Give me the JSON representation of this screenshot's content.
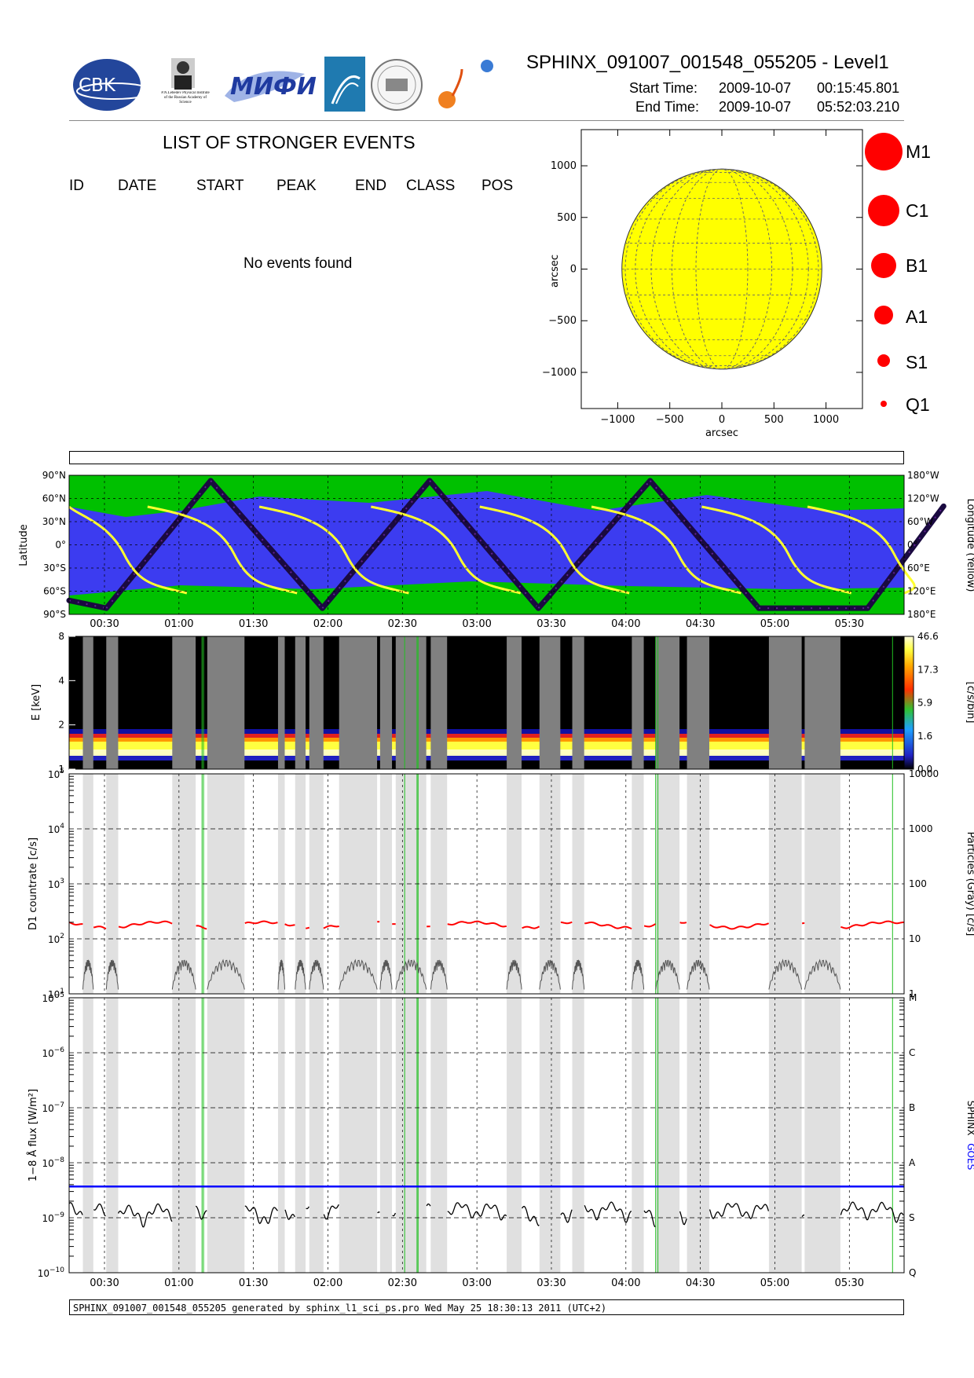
{
  "header": {
    "title": "SPHINX_091007_001548_055205 - Level1",
    "start_label": "Start Time:",
    "start_date": "2009-10-07",
    "start_time": "00:15:45.801",
    "end_label": "End Time:",
    "end_date": "2009-10-07",
    "end_time": "05:52:03.210",
    "logos": [
      "CBK",
      "P.N.Lebedev Physical Institute of the Russian Academy of Science",
      "МИФИ",
      "arc-logo",
      "seal-logo",
      "sun-logo"
    ]
  },
  "events": {
    "title": "LIST OF STRONGER EVENTS",
    "columns": [
      "ID",
      "DATE",
      "START",
      "PEAK",
      "END",
      "CLASS",
      "POS"
    ],
    "message": "No events found"
  },
  "classes": [
    "M1",
    "C1",
    "B1",
    "A1",
    "S1",
    "Q1"
  ],
  "colors": {
    "sun": "#ffff00",
    "marker": "#ff0000",
    "ocean": "#3c3cf0",
    "land": "#00c000",
    "orbit": "#ffff30",
    "goes": "#0000ff",
    "gray": "#e0e0e0"
  },
  "footer": "SPHINX_091007_001548_055205 generated by sphinx_l1_sci_ps.pro Wed May 25 18:30:13 2011 (UTC+2)",
  "chart_data": [
    {
      "type": "scatter",
      "name": "sun-disk",
      "xlabel": "arcsec",
      "ylabel": "arcsec",
      "xlim": [
        -1350,
        1350
      ],
      "ylim": [
        -1350,
        1350
      ],
      "xticks": [
        -1000,
        -500,
        0,
        500,
        1000
      ],
      "yticks": [
        -1000,
        -500,
        0,
        500,
        1000
      ],
      "xtick_labels": [
        "−1000",
        "−500",
        "0",
        "500",
        "1000"
      ],
      "ytick_labels": [
        "−1000",
        "−500",
        "0",
        "500",
        "1000"
      ],
      "disk_radius": 960,
      "events": []
    },
    {
      "type": "line",
      "name": "orbit-map",
      "ylabel": "Latitude",
      "ylabel_right": "Longitude (Yellow)",
      "lat_ticks": [
        "90°N",
        "60°N",
        "30°N",
        "0°",
        "30°S",
        "60°S",
        "90°S"
      ],
      "lon_ticks": [
        "180°W",
        "120°W",
        "60°W",
        "0°",
        "60°E",
        "120°E",
        "180°E"
      ],
      "latitude_track": {
        "t": [
          0.0,
          0.25,
          0.95,
          1.7,
          2.42,
          3.15,
          3.9,
          4.63,
          5.36,
          5.87
        ],
        "lat": [
          -72,
          -82,
          83,
          -82,
          83,
          -82,
          83,
          -82,
          -82,
          50
        ]
      }
    },
    {
      "type": "heatmap",
      "name": "spectrogram",
      "ylabel": "E [keV]",
      "y_ticks": [
        "1",
        "2",
        "4",
        "8"
      ],
      "colorbar_label": "[c/s/bin]",
      "colorbar_ticks": [
        "0.0",
        "1.6",
        "5.9",
        "17.3",
        "46.6"
      ]
    },
    {
      "type": "line",
      "name": "countrate",
      "ylabel": "D1 countrate [c/s]",
      "ylabel_right": "Particles (Gray) [c/s]",
      "y_log_range": [
        1,
        5
      ],
      "yticks": [
        {
          "b": "10",
          "e": "1"
        },
        {
          "b": "10",
          "e": "2"
        },
        {
          "b": "10",
          "e": "3"
        },
        {
          "b": "10",
          "e": "4"
        },
        {
          "b": "10",
          "e": "5"
        }
      ],
      "right_ticks": [
        "1",
        "10",
        "100",
        "1000",
        "10000"
      ],
      "d1_level": 180
    },
    {
      "type": "line",
      "name": "xray-flux",
      "ylabel": "1−8 Å flux [W/m²]",
      "ylabel_right": [
        "SPHINX",
        "GOES"
      ],
      "y_log_range": [
        -10,
        -5
      ],
      "yticks": [
        {
          "b": "10",
          "e": "−10"
        },
        {
          "b": "10",
          "e": "−9"
        },
        {
          "b": "10",
          "e": "−8"
        },
        {
          "b": "10",
          "e": "−7"
        },
        {
          "b": "10",
          "e": "−6"
        },
        {
          "b": "10",
          "e": "−5"
        }
      ],
      "right_classes": [
        "Q",
        "S",
        "A",
        "B",
        "C",
        "M"
      ],
      "goes_level": 3.7e-09,
      "sphinx_level": 1.3e-09
    }
  ],
  "time_axis": {
    "start_hours": 0.2627,
    "end_hours": 5.8675,
    "ticks": [
      {
        "h": 0.5,
        "label": "00:30"
      },
      {
        "h": 1.0,
        "label": "01:00"
      },
      {
        "h": 1.5,
        "label": "01:30"
      },
      {
        "h": 2.0,
        "label": "02:00"
      },
      {
        "h": 2.5,
        "label": "02:30"
      },
      {
        "h": 3.0,
        "label": "03:00"
      },
      {
        "h": 3.5,
        "label": "03:30"
      },
      {
        "h": 4.0,
        "label": "04:00"
      },
      {
        "h": 4.5,
        "label": "04:30"
      },
      {
        "h": 5.0,
        "label": "05:00"
      },
      {
        "h": 5.5,
        "label": "05:30"
      }
    ],
    "gaps": [
      [
        0.355,
        0.425
      ],
      [
        0.512,
        0.592
      ],
      [
        0.955,
        1.112
      ],
      [
        1.19,
        1.44
      ],
      [
        1.665,
        1.71
      ],
      [
        1.78,
        1.85
      ],
      [
        1.875,
        1.97
      ],
      [
        2.075,
        2.33
      ],
      [
        2.35,
        2.43
      ],
      [
        2.455,
        2.66
      ],
      [
        2.69,
        2.8
      ],
      [
        3.2,
        3.3
      ],
      [
        3.42,
        3.56
      ],
      [
        3.64,
        3.72
      ],
      [
        4.04,
        4.12
      ],
      [
        4.2,
        4.36
      ],
      [
        4.41,
        4.56
      ],
      [
        4.96,
        5.18
      ],
      [
        5.2,
        5.44
      ]
    ],
    "green_lines": [
      1.155,
      1.165,
      2.515,
      2.598,
      2.605,
      4.2,
      4.215,
      5.79
    ]
  }
}
